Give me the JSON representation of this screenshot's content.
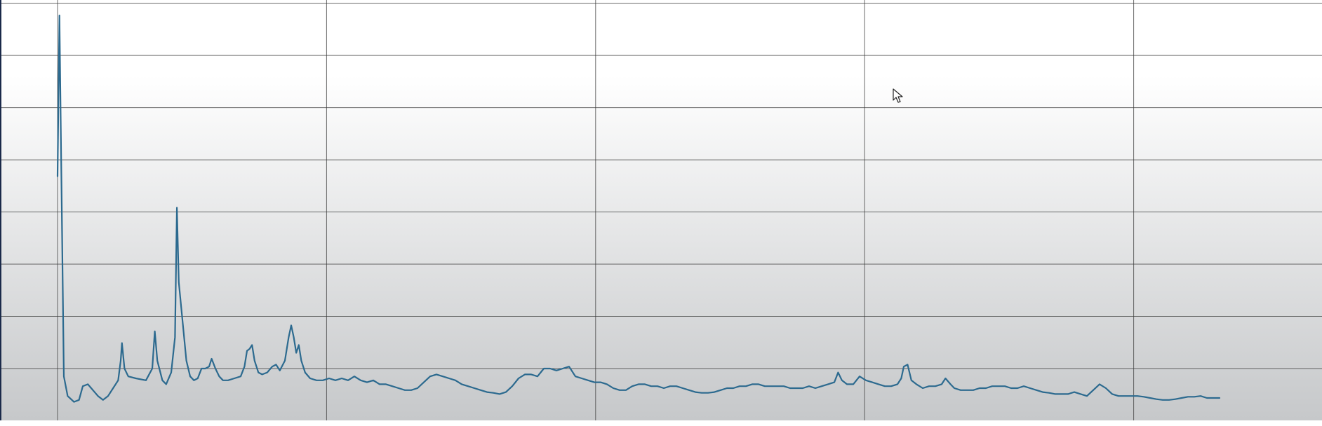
{
  "colors": {
    "background_top": "#ffffff",
    "background_bottom": "#c6c8ca",
    "gridline": "#3a3a3a",
    "series": "#2c6a8f",
    "frame_edge": "#1b2a4a"
  },
  "cursor": {
    "icon": "mouse-pointer-icon"
  },
  "chart_data": {
    "type": "line",
    "title": "",
    "xlabel": "",
    "ylabel": "",
    "xlim": [
      0,
      100
    ],
    "ylim": [
      0,
      100
    ],
    "grid": true,
    "legend": "none",
    "x_gridlines": [
      0,
      21.3,
      42.6,
      63.9,
      85.2
    ],
    "y_gridlines": [
      10,
      23.3,
      36.6,
      49.9,
      63.2,
      76.5,
      89.8,
      103.1
    ],
    "series": [
      {
        "values": [
          [
            0,
            59
          ],
          [
            0.15,
            100
          ],
          [
            0.3,
            60
          ],
          [
            0.5,
            8
          ],
          [
            0.8,
            3
          ],
          [
            1.3,
            1.5
          ],
          [
            1.7,
            2
          ],
          [
            2.0,
            5.5
          ],
          [
            2.4,
            6
          ],
          [
            2.8,
            4.5
          ],
          [
            3.2,
            3
          ],
          [
            3.6,
            2
          ],
          [
            4.0,
            3
          ],
          [
            4.4,
            5
          ],
          [
            4.8,
            7
          ],
          [
            5.0,
            12
          ],
          [
            5.1,
            16.5
          ],
          [
            5.3,
            10
          ],
          [
            5.6,
            8
          ],
          [
            6.2,
            7.5
          ],
          [
            7.0,
            7
          ],
          [
            7.5,
            10
          ],
          [
            7.7,
            19.5
          ],
          [
            7.9,
            12
          ],
          [
            8.3,
            7
          ],
          [
            8.6,
            6
          ],
          [
            9.0,
            9
          ],
          [
            9.3,
            18
          ],
          [
            9.45,
            51
          ],
          [
            9.6,
            32
          ],
          [
            9.9,
            22
          ],
          [
            10.2,
            12
          ],
          [
            10.5,
            8
          ],
          [
            10.8,
            7
          ],
          [
            11.1,
            7.5
          ],
          [
            11.4,
            10
          ],
          [
            11.7,
            10
          ],
          [
            12.0,
            10.5
          ],
          [
            12.2,
            12.5
          ],
          [
            12.5,
            10
          ],
          [
            12.8,
            8
          ],
          [
            13.1,
            7
          ],
          [
            13.5,
            7
          ],
          [
            14.0,
            7.5
          ],
          [
            14.5,
            8
          ],
          [
            14.8,
            10.5
          ],
          [
            15.0,
            14.5
          ],
          [
            15.2,
            15
          ],
          [
            15.4,
            16
          ],
          [
            15.6,
            12
          ],
          [
            15.9,
            9
          ],
          [
            16.2,
            8.5
          ],
          [
            16.6,
            9
          ],
          [
            17.0,
            10.5
          ],
          [
            17.3,
            11
          ],
          [
            17.6,
            9.5
          ],
          [
            18.0,
            12
          ],
          [
            18.3,
            18
          ],
          [
            18.5,
            21
          ],
          [
            18.7,
            18
          ],
          [
            18.9,
            14
          ],
          [
            19.1,
            16
          ],
          [
            19.3,
            12
          ],
          [
            19.6,
            9
          ],
          [
            20.0,
            7.5
          ],
          [
            20.5,
            7
          ],
          [
            21.0,
            7
          ],
          [
            21.5,
            7.5
          ],
          [
            22.0,
            7
          ],
          [
            22.5,
            7.5
          ],
          [
            23.0,
            7
          ],
          [
            23.5,
            8
          ],
          [
            24.0,
            7
          ],
          [
            24.5,
            6.5
          ],
          [
            25.0,
            7
          ],
          [
            25.5,
            6
          ],
          [
            26.0,
            6
          ],
          [
            26.5,
            5.5
          ],
          [
            27.0,
            5
          ],
          [
            27.5,
            4.5
          ],
          [
            28.0,
            4.5
          ],
          [
            28.5,
            5
          ],
          [
            29.0,
            6.5
          ],
          [
            29.5,
            8
          ],
          [
            30.0,
            8.5
          ],
          [
            30.5,
            8
          ],
          [
            31.0,
            7.5
          ],
          [
            31.5,
            7
          ],
          [
            32.0,
            6
          ],
          [
            32.5,
            5.5
          ],
          [
            33.0,
            5
          ],
          [
            33.5,
            4.5
          ],
          [
            34.0,
            4
          ],
          [
            34.5,
            3.8
          ],
          [
            35.0,
            3.5
          ],
          [
            35.5,
            4
          ],
          [
            36.0,
            5.5
          ],
          [
            36.5,
            7.5
          ],
          [
            37.0,
            8.5
          ],
          [
            37.5,
            8.5
          ],
          [
            38.0,
            8
          ],
          [
            38.5,
            10
          ],
          [
            39.0,
            10
          ],
          [
            39.5,
            9.5
          ],
          [
            40.0,
            10
          ],
          [
            40.5,
            10.5
          ],
          [
            41.0,
            8
          ],
          [
            41.5,
            7.5
          ],
          [
            42.0,
            7
          ],
          [
            42.5,
            6.5
          ],
          [
            43.0,
            6.5
          ],
          [
            43.5,
            6
          ],
          [
            44.0,
            5
          ],
          [
            44.5,
            4.5
          ],
          [
            45.0,
            4.5
          ],
          [
            45.5,
            5.5
          ],
          [
            46.0,
            6
          ],
          [
            46.5,
            6
          ],
          [
            47.0,
            5.5
          ],
          [
            47.5,
            5.5
          ],
          [
            48.0,
            5
          ],
          [
            48.5,
            5.5
          ],
          [
            49.0,
            5.5
          ],
          [
            49.5,
            5
          ],
          [
            50.0,
            4.5
          ],
          [
            50.5,
            4
          ],
          [
            51.0,
            3.8
          ],
          [
            51.5,
            3.8
          ],
          [
            52.0,
            4
          ],
          [
            52.5,
            4.5
          ],
          [
            53.0,
            5
          ],
          [
            53.5,
            5
          ],
          [
            54.0,
            5.5
          ],
          [
            54.5,
            5.5
          ],
          [
            55.0,
            6
          ],
          [
            55.5,
            6
          ],
          [
            56.0,
            5.5
          ],
          [
            56.5,
            5.5
          ],
          [
            57.0,
            5.5
          ],
          [
            57.5,
            5.5
          ],
          [
            58.0,
            5
          ],
          [
            58.5,
            5
          ],
          [
            59.0,
            5
          ],
          [
            59.5,
            5.5
          ],
          [
            60.0,
            5
          ],
          [
            60.5,
            5.5
          ],
          [
            61.0,
            6
          ],
          [
            61.5,
            6.5
          ],
          [
            61.8,
            9
          ],
          [
            62.1,
            7
          ],
          [
            62.5,
            6
          ],
          [
            63.0,
            6
          ],
          [
            63.5,
            8
          ],
          [
            64.0,
            7
          ],
          [
            64.5,
            6.5
          ],
          [
            65.0,
            6
          ],
          [
            65.5,
            5.5
          ],
          [
            66.0,
            5.5
          ],
          [
            66.5,
            6
          ],
          [
            66.8,
            7.5
          ],
          [
            67.0,
            10.5
          ],
          [
            67.3,
            11
          ],
          [
            67.6,
            7
          ],
          [
            68.0,
            6
          ],
          [
            68.5,
            5
          ],
          [
            69.0,
            5.5
          ],
          [
            69.5,
            5.5
          ],
          [
            70.0,
            6
          ],
          [
            70.3,
            7.5
          ],
          [
            70.7,
            6
          ],
          [
            71.0,
            5
          ],
          [
            71.5,
            4.5
          ],
          [
            72.0,
            4.5
          ],
          [
            72.5,
            4.5
          ],
          [
            73.0,
            5
          ],
          [
            73.5,
            5
          ],
          [
            74.0,
            5.5
          ],
          [
            74.5,
            5.5
          ],
          [
            75.0,
            5.5
          ],
          [
            75.5,
            5
          ],
          [
            76.0,
            5
          ],
          [
            76.5,
            5.5
          ],
          [
            77.0,
            5
          ],
          [
            77.5,
            4.5
          ],
          [
            78.0,
            4
          ],
          [
            78.5,
            3.8
          ],
          [
            79.0,
            3.5
          ],
          [
            79.5,
            3.5
          ],
          [
            80.0,
            3.5
          ],
          [
            80.5,
            4
          ],
          [
            81.0,
            3.5
          ],
          [
            81.5,
            3
          ],
          [
            82.0,
            4.5
          ],
          [
            82.5,
            6
          ],
          [
            83.0,
            5
          ],
          [
            83.5,
            3.5
          ],
          [
            84.0,
            3
          ],
          [
            84.5,
            3
          ],
          [
            85.0,
            3
          ],
          [
            85.5,
            3
          ],
          [
            86.0,
            2.8
          ],
          [
            86.5,
            2.5
          ],
          [
            87.0,
            2.2
          ],
          [
            87.5,
            2
          ],
          [
            88.0,
            2
          ],
          [
            88.5,
            2.2
          ],
          [
            89.0,
            2.5
          ],
          [
            89.5,
            2.8
          ],
          [
            90.0,
            2.8
          ],
          [
            90.5,
            3
          ],
          [
            91.0,
            2.5
          ],
          [
            91.5,
            2.5
          ],
          [
            92.0,
            2.5
          ]
        ]
      }
    ]
  }
}
